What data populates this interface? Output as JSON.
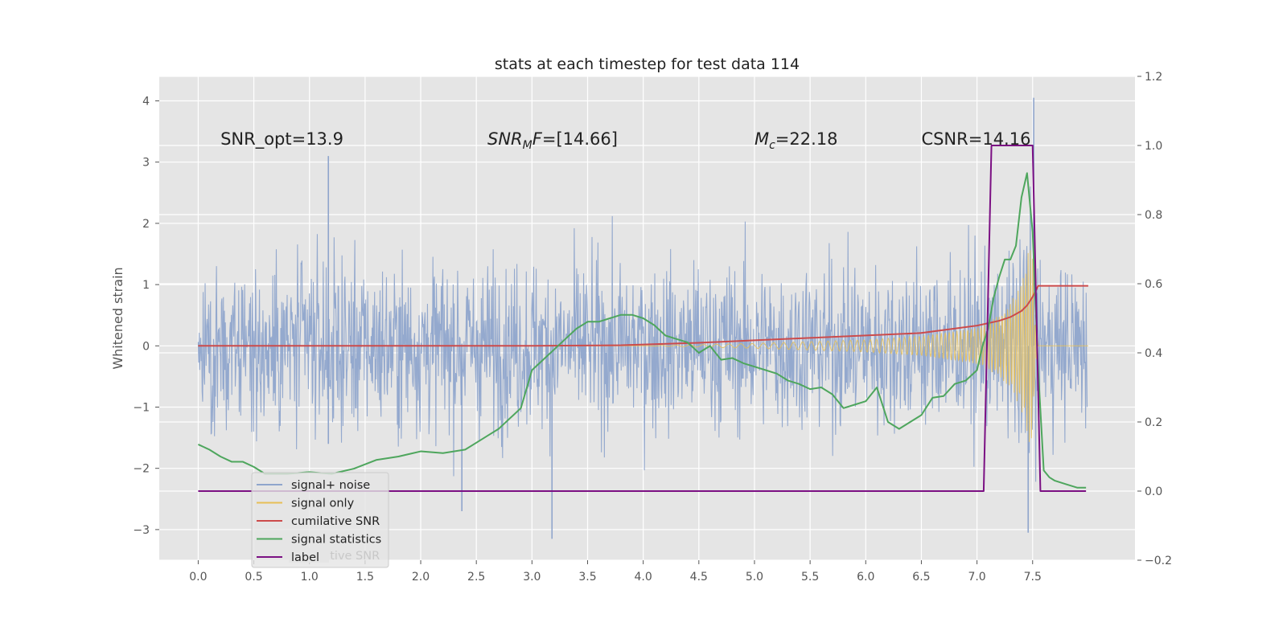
{
  "chart_data": {
    "type": "line",
    "title": "stats at each timestep for test data 114",
    "ylabel": "Whitened strain",
    "y2label": "",
    "xlim": [
      -0.35,
      8.42
    ],
    "ylim": [
      -3.5,
      4.4
    ],
    "y2lim": [
      -0.2,
      1.2
    ],
    "grid": true,
    "x_ticks": [
      "0.0",
      "0.5",
      "1.0",
      "1.5",
      "2.0",
      "2.5",
      "3.0",
      "3.5",
      "4.0",
      "4.5",
      "5.0",
      "5.5",
      "6.0",
      "6.5",
      "7.0",
      "7.5"
    ],
    "y_ticks": [
      "−3",
      "−2",
      "−1",
      "0",
      "1",
      "2",
      "3",
      "4"
    ],
    "y2_ticks": [
      "−0.2",
      "0.0",
      "0.2",
      "0.4",
      "0.6",
      "0.8",
      "1.0",
      "1.2"
    ],
    "annotations": {
      "snr_opt": "SNR_opt=13.9",
      "snr_mf_main": "SNR",
      "snr_mf_sub": "M",
      "snr_mf_rest": "F=[14.66]",
      "mc_main": "M",
      "mc_sub": "c",
      "mc_rest": "=22.18",
      "csnr": "CSNR=14.16"
    },
    "legend_placement": "lower-left",
    "series": [
      {
        "name": "signal+ noise",
        "color": "#8fa5cc",
        "axis": "left",
        "kind": "noise",
        "x_range": [
          0.0,
          7.99
        ],
        "envelope_typical": [
          -1.5,
          1.5
        ],
        "peaks": [
          [
            1.17,
            3.1
          ],
          [
            1.17,
            -1.6
          ],
          [
            3.18,
            -3.15
          ],
          [
            7.51,
            4.05
          ],
          [
            7.46,
            -3.05
          ],
          [
            2.37,
            -2.7
          ]
        ]
      },
      {
        "name": "signal only",
        "color": "#e8bf56",
        "axis": "left",
        "kind": "chirp",
        "x": [
          0.0,
          4.0,
          5.0,
          6.0,
          6.5,
          7.0,
          7.2,
          7.3,
          7.4,
          7.45,
          7.5,
          7.52,
          7.55,
          8.0
        ],
        "amplitude": [
          0.0,
          0.0,
          0.04,
          0.1,
          0.16,
          0.3,
          0.5,
          0.7,
          1.05,
          1.45,
          1.8,
          0.5,
          0.0,
          0.0
        ]
      },
      {
        "name": "cumilative SNR",
        "color": "#cc4b4b",
        "axis": "left",
        "x": [
          0.0,
          1.0,
          2.0,
          3.0,
          3.8,
          4.5,
          5.0,
          5.5,
          6.0,
          6.5,
          7.0,
          7.2,
          7.3,
          7.4,
          7.45,
          7.5,
          7.55,
          8.0
        ],
        "y": [
          0.0,
          0.0,
          0.0,
          0.0,
          0.01,
          0.05,
          0.09,
          0.13,
          0.17,
          0.21,
          0.33,
          0.41,
          0.47,
          0.57,
          0.66,
          0.8,
          0.98,
          0.98
        ]
      },
      {
        "name": "signal statistics",
        "color": "#4ea65d",
        "axis": "right",
        "x": [
          0.0,
          0.1,
          0.2,
          0.3,
          0.4,
          0.5,
          0.6,
          0.8,
          1.0,
          1.2,
          1.4,
          1.6,
          1.8,
          2.0,
          2.2,
          2.4,
          2.5,
          2.6,
          2.7,
          2.8,
          2.9,
          3.0,
          3.1,
          3.2,
          3.3,
          3.4,
          3.5,
          3.6,
          3.7,
          3.8,
          3.9,
          4.0,
          4.1,
          4.2,
          4.3,
          4.4,
          4.5,
          4.6,
          4.7,
          4.8,
          4.9,
          5.0,
          5.1,
          5.2,
          5.3,
          5.4,
          5.5,
          5.6,
          5.7,
          5.8,
          5.9,
          6.0,
          6.1,
          6.2,
          6.3,
          6.4,
          6.5,
          6.6,
          6.7,
          6.8,
          6.9,
          7.0,
          7.05,
          7.1,
          7.15,
          7.2,
          7.25,
          7.3,
          7.35,
          7.4,
          7.45,
          7.5,
          7.55,
          7.6,
          7.65,
          7.7,
          7.8,
          7.9,
          7.98
        ],
        "y": [
          0.135,
          0.12,
          0.1,
          0.085,
          0.085,
          0.07,
          0.05,
          0.05,
          0.055,
          0.05,
          0.065,
          0.09,
          0.1,
          0.115,
          0.11,
          0.12,
          0.14,
          0.16,
          0.18,
          0.21,
          0.24,
          0.35,
          0.38,
          0.41,
          0.44,
          0.47,
          0.49,
          0.49,
          0.5,
          0.51,
          0.51,
          0.5,
          0.48,
          0.45,
          0.44,
          0.43,
          0.4,
          0.42,
          0.38,
          0.385,
          0.37,
          0.36,
          0.35,
          0.34,
          0.32,
          0.31,
          0.295,
          0.3,
          0.28,
          0.24,
          0.25,
          0.26,
          0.3,
          0.2,
          0.18,
          0.2,
          0.22,
          0.27,
          0.275,
          0.31,
          0.32,
          0.35,
          0.42,
          0.47,
          0.56,
          0.62,
          0.67,
          0.67,
          0.71,
          0.85,
          0.92,
          0.75,
          0.35,
          0.06,
          0.04,
          0.03,
          0.02,
          0.01,
          0.01
        ]
      },
      {
        "name": "label",
        "color": "#7b1083",
        "axis": "right",
        "x": [
          0.0,
          7.06,
          7.13,
          7.5,
          7.57,
          7.98
        ],
        "y": [
          0.0,
          0.0,
          1.0,
          1.0,
          0.0,
          0.0
        ]
      }
    ]
  },
  "legend_ghost_text": "cumilative SNR"
}
